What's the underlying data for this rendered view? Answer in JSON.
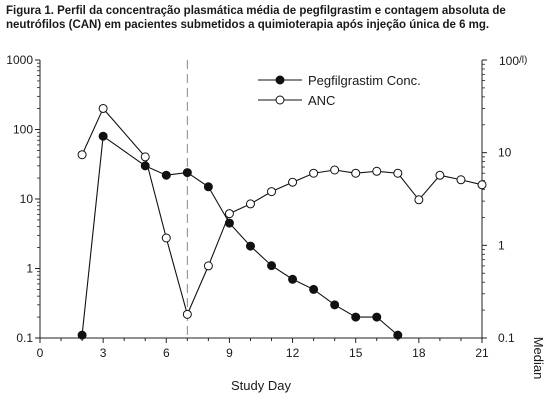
{
  "caption": {
    "line1": "Figura 1. Perfil da concentração plasmática média de pegfilgrastim e contagem absoluta de",
    "line2": "neutrófilos (CAN) em pacientes submetidos a quimioterapia após injeção única de 6 mg."
  },
  "chart_data": {
    "type": "line",
    "title": "",
    "xlabel": "Study Day",
    "ylabel_left": "",
    "ylabel_right": "Median",
    "right_axis_top_label": "100",
    "right_axis_unit_fragment": "/l)",
    "xlim": [
      0,
      21
    ],
    "x_ticks": [
      0,
      3,
      6,
      9,
      12,
      15,
      18,
      21
    ],
    "x_tick_labels": [
      "0",
      "3",
      "6",
      "9",
      "12",
      "15",
      "18",
      "21"
    ],
    "y_left_scale": "log",
    "y_left_lim": [
      0.1,
      1000
    ],
    "y_left_ticks": [
      0.1,
      1,
      10,
      100,
      1000
    ],
    "y_left_tick_labels": [
      "0.1",
      "1",
      "10",
      "100",
      "1000"
    ],
    "y_right_scale": "log",
    "y_right_lim": [
      0.1,
      100
    ],
    "y_right_ticks": [
      0.1,
      1,
      10,
      100
    ],
    "y_right_tick_labels": [
      "0.1",
      "1",
      "10",
      ""
    ],
    "reference_line_x": 7,
    "legend_position": "top-right",
    "grid": false,
    "series": [
      {
        "name": "Pegfilgrastim Conc.",
        "axis": "left",
        "marker": "filled-circle",
        "x": [
          2,
          3,
          5,
          6,
          7,
          8,
          9,
          10,
          11,
          12,
          13,
          14,
          15,
          16,
          17
        ],
        "y": [
          0.11,
          80,
          30,
          22,
          24,
          15,
          4.5,
          2.1,
          1.1,
          0.7,
          0.5,
          0.3,
          0.2,
          0.2,
          0.11
        ]
      },
      {
        "name": "ANC",
        "axis": "right",
        "marker": "open-circle",
        "x": [
          2,
          3,
          5,
          6,
          7,
          8,
          9,
          10,
          11,
          12,
          13,
          14,
          15,
          16,
          17,
          18,
          19,
          20,
          21
        ],
        "y": [
          9.5,
          30,
          9,
          1.2,
          0.18,
          0.6,
          2.2,
          2.8,
          3.8,
          4.8,
          6,
          6.5,
          6,
          6.3,
          6,
          3.1,
          5.7,
          5.1,
          4.5
        ]
      }
    ]
  }
}
